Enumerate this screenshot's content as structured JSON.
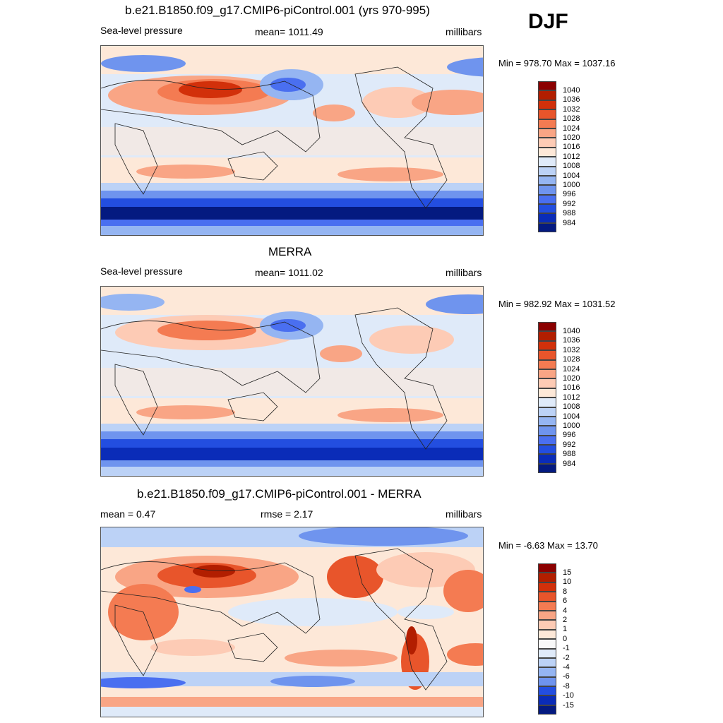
{
  "season": "DJF",
  "panels": [
    {
      "id": "model",
      "title": "b.e21.B1850.f09_g17.CMIP6-piControl.001 (yrs 970-995)",
      "left": "Sea-level pressure",
      "center": "mean= 1011.49",
      "right": "millibars",
      "minmax": "Min = 978.70 Max = 1037.16"
    },
    {
      "id": "obs",
      "title": "MERRA",
      "left": "Sea-level pressure",
      "center": "mean= 1011.02",
      "right": "millibars",
      "minmax": "Min = 982.92 Max = 1031.52"
    },
    {
      "id": "diff",
      "title": "b.e21.B1850.f09_g17.CMIP6-piControl.001 - MERRA",
      "left": "mean =   0.47",
      "center": "rmse =   2.17",
      "right": "millibars",
      "minmax": "Min =  -6.63 Max =  13.70"
    }
  ],
  "colorbar_abs": {
    "labels": [
      "1040",
      "1036",
      "1032",
      "1028",
      "1024",
      "1020",
      "1016",
      "1012",
      "1008",
      "1004",
      "1000",
      "996",
      "992",
      "988",
      "984"
    ],
    "colors": [
      "#8b0000",
      "#b21e00",
      "#d2300a",
      "#e8552b",
      "#f47b52",
      "#f9a585",
      "#fdcbb5",
      "#fde8d8",
      "#dfeaf9",
      "#bcd2f6",
      "#95b5f2",
      "#6f94ee",
      "#4a6ff0",
      "#234ee0",
      "#0a2cb8",
      "#041a80"
    ]
  },
  "colorbar_diff": {
    "labels": [
      "15",
      "10",
      "8",
      "6",
      "4",
      "2",
      "1",
      "0",
      "-1",
      "-2",
      "-4",
      "-6",
      "-8",
      "-10",
      "-15"
    ],
    "colors": [
      "#8b0000",
      "#b21e00",
      "#d2300a",
      "#e8552b",
      "#f47b52",
      "#f9a585",
      "#fdcbb5",
      "#fde8d8",
      "#f8f8f8",
      "#dfeaf9",
      "#bcd2f6",
      "#95b5f2",
      "#6f94ee",
      "#234ee0",
      "#0a2cb8",
      "#041a80"
    ]
  }
}
